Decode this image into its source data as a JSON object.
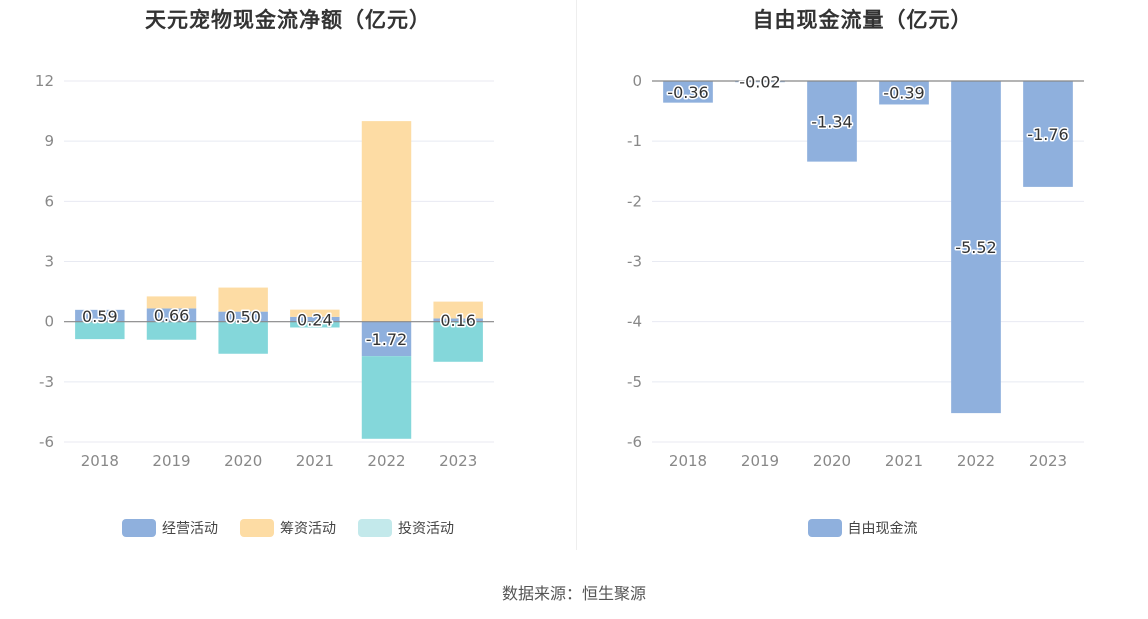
{
  "source": "数据来源：恒生聚源",
  "colors": {
    "operating": "#8fb0dd",
    "financing": "#fddca4",
    "investing": "#84d7da",
    "investing_legend": "#c3e9eb",
    "free_cash_flow": "#8fb0dd",
    "grid": "#e8eaf2",
    "axis_text": "#888888"
  },
  "chart_data": [
    {
      "type": "bar",
      "stacked": true,
      "title": "天元宠物现金流净额（亿元）",
      "categories": [
        "2018",
        "2019",
        "2020",
        "2021",
        "2022",
        "2023"
      ],
      "yticks": [
        "12",
        "9",
        "6",
        "3",
        "0",
        "-3",
        "-6"
      ],
      "ylim": [
        -6,
        12
      ],
      "grid": true,
      "legend_position": "bottom",
      "series": [
        {
          "name": "经营活动",
          "values": [
            0.59,
            0.66,
            0.5,
            0.24,
            -1.72,
            0.16
          ],
          "labels": [
            "0.59",
            "0.66",
            "0.50",
            "0.24",
            "-1.72",
            "0.16"
          ]
        },
        {
          "name": "筹资活动",
          "values": [
            0.0,
            0.6,
            1.2,
            0.36,
            10.0,
            0.84
          ]
        },
        {
          "name": "投资活动",
          "values": [
            -0.87,
            -0.9,
            -1.6,
            -0.29,
            -4.12,
            -2.0
          ]
        }
      ]
    },
    {
      "type": "bar",
      "title": "自由现金流量（亿元）",
      "categories": [
        "2018",
        "2019",
        "2020",
        "2021",
        "2022",
        "2023"
      ],
      "yticks": [
        "0",
        "-1",
        "-2",
        "-3",
        "-4",
        "-5",
        "-6"
      ],
      "ylim": [
        -6,
        0
      ],
      "grid": true,
      "legend_position": "bottom",
      "series": [
        {
          "name": "自由现金流",
          "values": [
            -0.36,
            -0.02,
            -1.34,
            -0.39,
            -5.52,
            -1.76
          ],
          "labels": [
            "-0.36",
            "-0.02",
            "-1.34",
            "-0.39",
            "-5.52",
            "-1.76"
          ]
        }
      ]
    }
  ]
}
